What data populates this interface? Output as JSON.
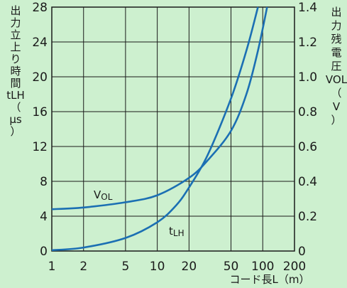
{
  "chart_data": {
    "type": "line",
    "title": "",
    "x_axis": {
      "label": "コード長L（m）",
      "scale": "log",
      "range": [
        1,
        200
      ],
      "ticks": [
        "1",
        "2",
        "5",
        "10",
        "20",
        "50",
        "100",
        "200"
      ],
      "tick_values": [
        1,
        2,
        5,
        10,
        20,
        50,
        100,
        200
      ]
    },
    "y_left": {
      "label_lines": [
        "出",
        "力",
        "立",
        "上",
        "り",
        "時",
        "間",
        "tLH",
        "（",
        "μs",
        "）"
      ],
      "range": [
        0,
        28
      ],
      "ticks": [
        "0",
        "4",
        "8",
        "12",
        "16",
        "20",
        "24",
        "28"
      ],
      "tick_values": [
        0,
        4,
        8,
        12,
        16,
        20,
        24,
        28
      ]
    },
    "y_right": {
      "label_lines": [
        "出",
        "力",
        "残",
        "電",
        "圧",
        "VOL",
        "（",
        "V",
        "）"
      ],
      "range": [
        0,
        1.4
      ],
      "ticks": [
        "0",
        "0.2",
        "0.4",
        "0.6",
        "0.8",
        "1.0",
        "1.2",
        "1.4"
      ],
      "tick_values": [
        0,
        0.2,
        0.4,
        0.6,
        0.8,
        1.0,
        1.2,
        1.4
      ]
    },
    "grid": true,
    "series": [
      {
        "name": "VOL",
        "axis": "right",
        "x": [
          1,
          2,
          5,
          10,
          20,
          30,
          50,
          70,
          90,
          110
        ],
        "y": [
          0.24,
          0.25,
          0.28,
          0.32,
          0.42,
          0.52,
          0.69,
          0.9,
          1.15,
          1.4
        ]
      },
      {
        "name": "tLH",
        "axis": "left",
        "x": [
          1,
          2,
          5,
          10,
          15,
          20,
          30,
          50,
          70,
          90
        ],
        "y": [
          0.1,
          0.4,
          1.5,
          3.3,
          5.2,
          7.3,
          11,
          17.5,
          23,
          28
        ]
      }
    ],
    "series_label_text": {
      "VOL": "VOL",
      "tLH": "tLH"
    },
    "colors": {
      "line": "#1b6fb3",
      "grid": "#1a1a1a",
      "background": "#cdf0cf",
      "text": "#1a1a1a"
    }
  }
}
